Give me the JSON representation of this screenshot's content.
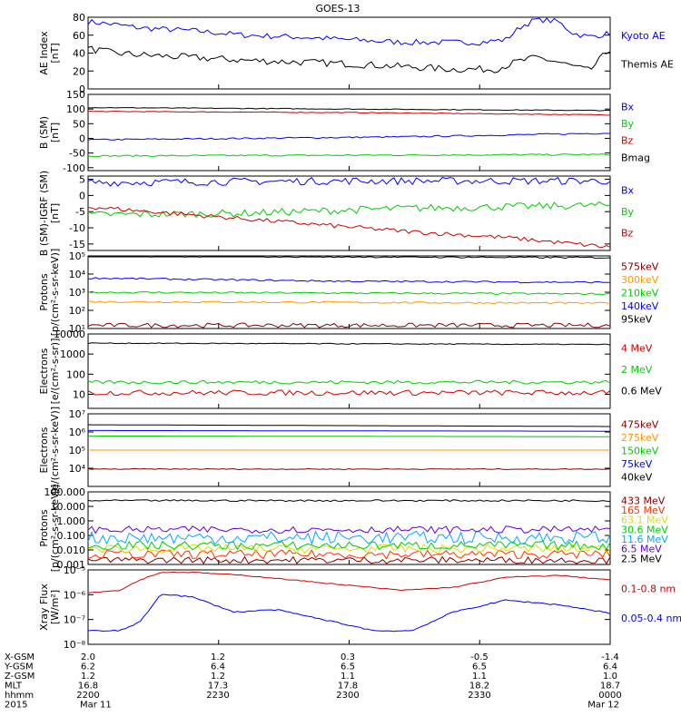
{
  "title": "GOES-13",
  "panels": [
    {
      "id": "ae",
      "ylabel": [
        "AE Index",
        "[nT]"
      ],
      "scale": "linear",
      "ylim": [
        0,
        80
      ],
      "ticks": [
        {
          "v": 0,
          "t": "0"
        },
        {
          "v": 20,
          "t": "20"
        },
        {
          "v": 40,
          "t": "40"
        },
        {
          "v": 60,
          "t": "60"
        },
        {
          "v": 80,
          "t": "80"
        }
      ],
      "series": [
        {
          "name": "Kyoto AE",
          "color": "#0000ff",
          "show_legend": true,
          "noise": 0.04,
          "points": [
            [
              0,
              75
            ],
            [
              0.05,
              72
            ],
            [
              0.1,
              68
            ],
            [
              0.2,
              65
            ],
            [
              0.3,
              60
            ],
            [
              0.4,
              58
            ],
            [
              0.5,
              55
            ],
            [
              0.6,
              52
            ],
            [
              0.75,
              52
            ],
            [
              0.8,
              55
            ],
            [
              0.83,
              70
            ],
            [
              0.86,
              78
            ],
            [
              0.9,
              75
            ],
            [
              0.93,
              62
            ],
            [
              0.96,
              58
            ],
            [
              1,
              62
            ]
          ]
        },
        {
          "name": "Themis AE",
          "color": "#000000",
          "show_legend": true,
          "noise": 0.05,
          "points": [
            [
              0,
              45
            ],
            [
              0.05,
              40
            ],
            [
              0.1,
              38
            ],
            [
              0.2,
              35
            ],
            [
              0.3,
              32
            ],
            [
              0.4,
              30
            ],
            [
              0.5,
              28
            ],
            [
              0.6,
              25
            ],
            [
              0.7,
              22
            ],
            [
              0.78,
              22
            ],
            [
              0.82,
              30
            ],
            [
              0.86,
              35
            ],
            [
              0.9,
              30
            ],
            [
              0.93,
              25
            ],
            [
              0.96,
              20
            ],
            [
              1,
              45
            ]
          ]
        }
      ]
    },
    {
      "id": "bsm",
      "ylabel": [
        "B (SM)",
        "[nT]"
      ],
      "scale": "linear",
      "ylim": [
        -110,
        150
      ],
      "ticks": [
        {
          "v": -100,
          "t": "-100"
        },
        {
          "v": -50,
          "t": "-50"
        },
        {
          "v": 0,
          "t": "0"
        },
        {
          "v": 50,
          "t": "50"
        },
        {
          "v": 100,
          "t": "100"
        },
        {
          "v": 150,
          "t": "150"
        }
      ],
      "series": [
        {
          "name": "Bx",
          "color": "#0000ff",
          "show_legend": true,
          "noise": 0.01,
          "points": [
            [
              0,
              -5
            ],
            [
              0.3,
              0
            ],
            [
              0.6,
              5
            ],
            [
              1,
              18
            ]
          ]
        },
        {
          "name": "By",
          "color": "#00cc00",
          "show_legend": true,
          "noise": 0.01,
          "points": [
            [
              0,
              -60
            ],
            [
              1,
              -55
            ]
          ]
        },
        {
          "name": "Bz",
          "color": "#cc0000",
          "show_legend": true,
          "noise": 0.005,
          "points": [
            [
              0,
              92
            ],
            [
              0.5,
              88
            ],
            [
              1,
              80
            ]
          ]
        },
        {
          "name": "Bmag",
          "color": "#000000",
          "show_legend": true,
          "noise": 0.005,
          "points": [
            [
              0,
              105
            ],
            [
              0.5,
              100
            ],
            [
              1,
              95
            ]
          ]
        }
      ]
    },
    {
      "id": "bigrf",
      "ylabel": [
        "B (SM)-IGRF (SM)",
        "[nT]"
      ],
      "scale": "linear",
      "ylim": [
        -17,
        6
      ],
      "ticks": [
        {
          "v": -15,
          "t": "-15"
        },
        {
          "v": -10,
          "t": "-10"
        },
        {
          "v": -5,
          "t": "-5"
        },
        {
          "v": 0,
          "t": "0"
        },
        {
          "v": 5,
          "t": "5"
        }
      ],
      "series": [
        {
          "name": "Bx",
          "color": "#0000ff",
          "show_legend": true,
          "noise": 0.05,
          "points": [
            [
              0,
              4
            ],
            [
              0.5,
              4.5
            ],
            [
              1,
              4.5
            ]
          ]
        },
        {
          "name": "By",
          "color": "#00cc00",
          "show_legend": true,
          "noise": 0.05,
          "points": [
            [
              0,
              -6
            ],
            [
              0.3,
              -5.5
            ],
            [
              0.6,
              -4
            ],
            [
              1,
              -3
            ]
          ]
        },
        {
          "name": "Bz",
          "color": "#cc0000",
          "show_legend": true,
          "noise": 0.03,
          "points": [
            [
              0,
              -3.5
            ],
            [
              0.2,
              -6
            ],
            [
              0.4,
              -8.5
            ],
            [
              0.6,
              -11
            ],
            [
              0.8,
              -13
            ],
            [
              1,
              -16
            ]
          ]
        }
      ]
    },
    {
      "id": "protons_lo",
      "ylabel": [
        "Protons",
        "[p/(cm²-s-sr-keV)]"
      ],
      "scale": "log",
      "ylim": [
        10,
        100000
      ],
      "ticks": [
        {
          "v": 10,
          "t": "10¹"
        },
        {
          "v": 100,
          "t": "10²"
        },
        {
          "v": 1000,
          "t": "10³"
        },
        {
          "v": 10000,
          "t": "10⁴"
        },
        {
          "v": 100000,
          "t": "10⁵"
        }
      ],
      "series": [
        {
          "name": "575keV",
          "color": "#800000",
          "show_legend": true,
          "noise": 0.05,
          "points": [
            [
              0,
              15
            ],
            [
              1,
              15
            ]
          ]
        },
        {
          "name": "300keV",
          "color": "#ff9900",
          "show_legend": true,
          "noise": 0.02,
          "points": [
            [
              0,
              300
            ],
            [
              1,
              250
            ]
          ]
        },
        {
          "name": "210keV",
          "color": "#00cc00",
          "show_legend": true,
          "noise": 0.02,
          "points": [
            [
              0,
              1000
            ],
            [
              1,
              800
            ]
          ]
        },
        {
          "name": "140keV",
          "color": "#0000ff",
          "show_legend": true,
          "noise": 0.02,
          "points": [
            [
              0,
              6000
            ],
            [
              0.5,
              4000
            ],
            [
              1,
              3500
            ]
          ]
        },
        {
          "name": "95keV",
          "color": "#000000",
          "show_legend": true,
          "noise": 0.02,
          "points": [
            [
              0,
              100000
            ],
            [
              1,
              80000
            ]
          ]
        }
      ]
    },
    {
      "id": "electrons_hi",
      "ylabel": [
        "Electrons",
        "[e/(cm²-s-sr)]"
      ],
      "scale": "log",
      "ylim": [
        2,
        10000
      ],
      "ticks": [
        {
          "v": 10,
          "t": "10"
        },
        {
          "v": 100,
          "t": "100"
        },
        {
          "v": 1000,
          "t": "1000"
        },
        {
          "v": 10000,
          "t": "10000"
        }
      ],
      "series": [
        {
          "name": "4 MeV",
          "color": "#cc0000",
          "show_legend": true,
          "noise": 0.06,
          "points": [
            [
              0,
              12
            ],
            [
              1,
              12
            ]
          ]
        },
        {
          "name": "2 MeV",
          "color": "#00cc00",
          "show_legend": true,
          "noise": 0.04,
          "points": [
            [
              0,
              40
            ],
            [
              1,
              40
            ]
          ]
        },
        {
          "name": "0.6 MeV",
          "color": "#000000",
          "show_legend": true,
          "noise": 0.01,
          "points": [
            [
              0,
              3500
            ],
            [
              1,
              3000
            ]
          ]
        }
      ]
    },
    {
      "id": "electrons_lo",
      "ylabel": [
        "Electrons",
        "[e/(cm²-s-sr-keV)]"
      ],
      "scale": "log",
      "ylim": [
        1000,
        10000000
      ],
      "ticks": [
        {
          "v": 10000,
          "t": "10⁴"
        },
        {
          "v": 100000,
          "t": "10⁵"
        },
        {
          "v": 1000000,
          "t": "10⁶"
        },
        {
          "v": 10000000,
          "t": "10⁷"
        }
      ],
      "series": [
        {
          "name": "475keV",
          "color": "#800000",
          "show_legend": true,
          "noise": 0.01,
          "points": [
            [
              0,
              9000
            ],
            [
              1,
              9000
            ]
          ]
        },
        {
          "name": "275keV",
          "color": "#ff9900",
          "show_legend": true,
          "noise": 0.0,
          "points": [
            [
              0,
              100000
            ],
            [
              1,
              100000
            ]
          ]
        },
        {
          "name": "150keV",
          "color": "#00cc00",
          "show_legend": true,
          "noise": 0.0,
          "points": [
            [
              0,
              600000
            ],
            [
              1,
              550000
            ]
          ]
        },
        {
          "name": "75keV",
          "color": "#0000ff",
          "show_legend": true,
          "noise": 0.0,
          "points": [
            [
              0,
              1200000
            ],
            [
              1,
              1100000
            ]
          ]
        },
        {
          "name": "40keV",
          "color": "#000000",
          "show_legend": true,
          "noise": 0.0,
          "points": [
            [
              0,
              2500000
            ],
            [
              1,
              2000000
            ]
          ]
        }
      ]
    },
    {
      "id": "protons_hi",
      "ylabel": [
        "Protons",
        "[p/(cm²-s-sr-keV)]"
      ],
      "scale": "log",
      "ylim": [
        0.001,
        100
      ],
      "ticks": [
        {
          "v": 0.001,
          "t": "0.001"
        },
        {
          "v": 0.01,
          "t": "0.010"
        },
        {
          "v": 0.1,
          "t": "0.100"
        },
        {
          "v": 1,
          "t": "1.000"
        },
        {
          "v": 10,
          "t": "10.000"
        },
        {
          "v": 100,
          "t": "100.000"
        }
      ],
      "series": [
        {
          "name": "433 MeV",
          "color": "#800000",
          "show_legend": true,
          "noise": 0.08,
          "points": [
            [
              0,
              0.002
            ],
            [
              1,
              0.002
            ]
          ]
        },
        {
          "name": "165 MeV",
          "color": "#ff3300",
          "show_legend": true,
          "noise": 0.1,
          "points": [
            [
              0,
              0.005
            ],
            [
              1,
              0.005
            ]
          ]
        },
        {
          "name": "63.1 MeV",
          "color": "#dddd00",
          "show_legend": true,
          "noise": 0.1,
          "points": [
            [
              0,
              0.012
            ],
            [
              1,
              0.012
            ]
          ]
        },
        {
          "name": "30.6 MeV",
          "color": "#00cc00",
          "show_legend": true,
          "noise": 0.1,
          "points": [
            [
              0,
              0.02
            ],
            [
              1,
              0.02
            ]
          ]
        },
        {
          "name": "11.6 MeV",
          "color": "#00aaff",
          "show_legend": true,
          "noise": 0.15,
          "points": [
            [
              0,
              0.07
            ],
            [
              1,
              0.07
            ]
          ]
        },
        {
          "name": "6.5 MeV",
          "color": "#6600cc",
          "show_legend": true,
          "noise": 0.08,
          "points": [
            [
              0,
              0.25
            ],
            [
              1,
              0.25
            ]
          ]
        },
        {
          "name": "2.5 MeV",
          "color": "#000000",
          "show_legend": true,
          "noise": 0.02,
          "points": [
            [
              0,
              25
            ],
            [
              1,
              25
            ]
          ]
        }
      ]
    },
    {
      "id": "xray",
      "ylabel": [
        "Xray Flux",
        "[W/m²]"
      ],
      "scale": "log",
      "ylim": [
        1e-08,
        1e-05
      ],
      "ticks": [
        {
          "v": 1e-08,
          "t": "10⁻⁸"
        },
        {
          "v": 1e-07,
          "t": "10⁻⁷"
        },
        {
          "v": 1e-06,
          "t": "10⁻⁶"
        },
        {
          "v": 1e-05,
          "t": "10⁻⁵"
        }
      ],
      "series": [
        {
          "name": "0.1-0.8 nm",
          "color": "#cc0000",
          "show_legend": true,
          "noise": 0.01,
          "points": [
            [
              0,
              1.2e-06
            ],
            [
              0.06,
              1.5e-06
            ],
            [
              0.1,
              4e-06
            ],
            [
              0.14,
              8e-06
            ],
            [
              0.2,
              8e-06
            ],
            [
              0.3,
              6e-06
            ],
            [
              0.45,
              3e-06
            ],
            [
              0.6,
              1.5e-06
            ],
            [
              0.7,
              2e-06
            ],
            [
              0.8,
              5e-06
            ],
            [
              0.9,
              6e-06
            ],
            [
              1,
              4e-06
            ]
          ]
        },
        {
          "name": "0.05-0.4 nm",
          "color": "#0000ff",
          "show_legend": true,
          "noise": 0.015,
          "points": [
            [
              0,
              3.5e-08
            ],
            [
              0.06,
              3.5e-08
            ],
            [
              0.1,
              8e-08
            ],
            [
              0.14,
              1.1e-06
            ],
            [
              0.2,
              8e-07
            ],
            [
              0.28,
              2e-07
            ],
            [
              0.36,
              2.5e-07
            ],
            [
              0.45,
              1e-07
            ],
            [
              0.55,
              3.5e-08
            ],
            [
              0.62,
              3.5e-08
            ],
            [
              0.7,
              2e-07
            ],
            [
              0.8,
              6e-07
            ],
            [
              0.9,
              4e-07
            ],
            [
              1,
              1.8e-07
            ]
          ]
        }
      ]
    }
  ],
  "footer": {
    "rows": [
      {
        "label": "X-GSM",
        "values": [
          "2.0",
          "1.2",
          "0.3",
          "-0.5",
          "-1.4"
        ]
      },
      {
        "label": "Y-GSM",
        "values": [
          "6.2",
          "6.4",
          "6.5",
          "6.5",
          "6.4"
        ]
      },
      {
        "label": "Z-GSM",
        "values": [
          "1.2",
          "1.2",
          "1.1",
          "1.1",
          "1.0"
        ]
      },
      {
        "label": "MLT",
        "values": [
          "16.8",
          "17.3",
          "17.8",
          "18.2",
          "18.7"
        ]
      },
      {
        "label": "hhmm",
        "values": [
          "2200",
          "2230",
          "2300",
          "2330",
          "0000"
        ]
      },
      {
        "label": "2015",
        "values": [
          "Mar 11",
          "",
          "",
          "",
          "Mar 12"
        ]
      }
    ]
  }
}
